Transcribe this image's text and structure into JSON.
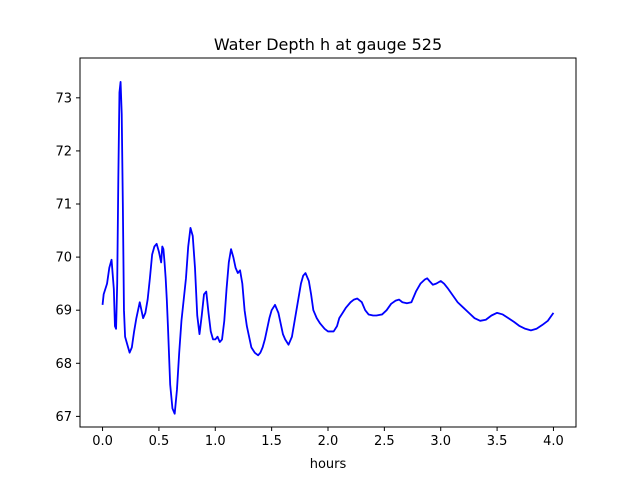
{
  "chart_data": {
    "type": "line",
    "title": "Water Depth h at gauge 525",
    "xlabel": "hours",
    "ylabel": "",
    "xlim": [
      -0.2,
      4.2
    ],
    "ylim": [
      66.8,
      73.75
    ],
    "xticks": [
      0.0,
      0.5,
      1.0,
      1.5,
      2.0,
      2.5,
      3.0,
      3.5,
      4.0
    ],
    "xtick_labels": [
      "0.0",
      "0.5",
      "1.0",
      "1.5",
      "2.0",
      "2.5",
      "3.0",
      "3.5",
      "4.0"
    ],
    "yticks": [
      67,
      68,
      69,
      70,
      71,
      72,
      73
    ],
    "ytick_labels": [
      "67",
      "68",
      "69",
      "70",
      "71",
      "72",
      "73"
    ],
    "grid": false,
    "series": [
      {
        "color": "#0000ff",
        "x": [
          0.0,
          0.01,
          0.04,
          0.06,
          0.08,
          0.1,
          0.11,
          0.12,
          0.13,
          0.14,
          0.15,
          0.16,
          0.17,
          0.18,
          0.19,
          0.2,
          0.22,
          0.24,
          0.26,
          0.28,
          0.3,
          0.33,
          0.36,
          0.38,
          0.4,
          0.42,
          0.44,
          0.46,
          0.48,
          0.5,
          0.52,
          0.53,
          0.54,
          0.55,
          0.56,
          0.57,
          0.58,
          0.6,
          0.62,
          0.64,
          0.66,
          0.68,
          0.7,
          0.72,
          0.74,
          0.76,
          0.78,
          0.8,
          0.82,
          0.84,
          0.86,
          0.88,
          0.9,
          0.92,
          0.94,
          0.96,
          0.98,
          1.0,
          1.02,
          1.04,
          1.06,
          1.08,
          1.1,
          1.12,
          1.14,
          1.16,
          1.18,
          1.2,
          1.22,
          1.24,
          1.26,
          1.28,
          1.3,
          1.32,
          1.35,
          1.38,
          1.4,
          1.42,
          1.44,
          1.46,
          1.48,
          1.5,
          1.53,
          1.56,
          1.58,
          1.6,
          1.62,
          1.65,
          1.68,
          1.7,
          1.72,
          1.74,
          1.76,
          1.78,
          1.8,
          1.83,
          1.85,
          1.87,
          1.9,
          1.93,
          1.97,
          2.0,
          2.05,
          2.08,
          2.1,
          2.13,
          2.16,
          2.2,
          2.23,
          2.26,
          2.3,
          2.33,
          2.36,
          2.4,
          2.43,
          2.48,
          2.52,
          2.56,
          2.6,
          2.63,
          2.66,
          2.7,
          2.74,
          2.78,
          2.82,
          2.86,
          2.88,
          2.9,
          2.93,
          2.96,
          3.0,
          3.03,
          3.06,
          3.1,
          3.15,
          3.2,
          3.25,
          3.3,
          3.35,
          3.4,
          3.45,
          3.5,
          3.55,
          3.6,
          3.65,
          3.7,
          3.75,
          3.8,
          3.85,
          3.9,
          3.95,
          4.0
        ],
        "y": [
          69.1,
          69.3,
          69.5,
          69.8,
          69.95,
          69.4,
          68.7,
          68.65,
          69.5,
          71.5,
          73.1,
          73.3,
          72.7,
          71.0,
          69.0,
          68.5,
          68.35,
          68.2,
          68.3,
          68.6,
          68.85,
          69.15,
          68.85,
          68.95,
          69.2,
          69.6,
          70.05,
          70.2,
          70.25,
          70.1,
          69.9,
          70.2,
          70.15,
          69.9,
          69.6,
          69.2,
          68.7,
          67.6,
          67.15,
          67.05,
          67.5,
          68.2,
          68.8,
          69.2,
          69.6,
          70.2,
          70.55,
          70.4,
          69.8,
          68.9,
          68.55,
          68.9,
          69.3,
          69.35,
          68.95,
          68.6,
          68.45,
          68.45,
          68.5,
          68.4,
          68.45,
          68.8,
          69.4,
          69.9,
          70.15,
          70.0,
          69.8,
          69.7,
          69.75,
          69.5,
          69.0,
          68.7,
          68.5,
          68.3,
          68.2,
          68.15,
          68.2,
          68.3,
          68.45,
          68.65,
          68.85,
          69.0,
          69.1,
          68.95,
          68.75,
          68.55,
          68.45,
          68.35,
          68.5,
          68.75,
          69.0,
          69.25,
          69.5,
          69.65,
          69.7,
          69.55,
          69.3,
          69.0,
          68.85,
          68.75,
          68.65,
          68.6,
          68.6,
          68.7,
          68.85,
          68.95,
          69.05,
          69.15,
          69.2,
          69.22,
          69.15,
          69.0,
          68.92,
          68.9,
          68.9,
          68.92,
          69.0,
          69.12,
          69.18,
          69.2,
          69.15,
          69.13,
          69.15,
          69.35,
          69.5,
          69.58,
          69.6,
          69.55,
          69.48,
          69.5,
          69.55,
          69.5,
          69.42,
          69.3,
          69.15,
          69.05,
          68.95,
          68.85,
          68.8,
          68.82,
          68.9,
          68.95,
          68.92,
          68.85,
          68.78,
          68.7,
          68.65,
          68.62,
          68.65,
          68.72,
          68.8,
          68.95
        ]
      }
    ]
  }
}
